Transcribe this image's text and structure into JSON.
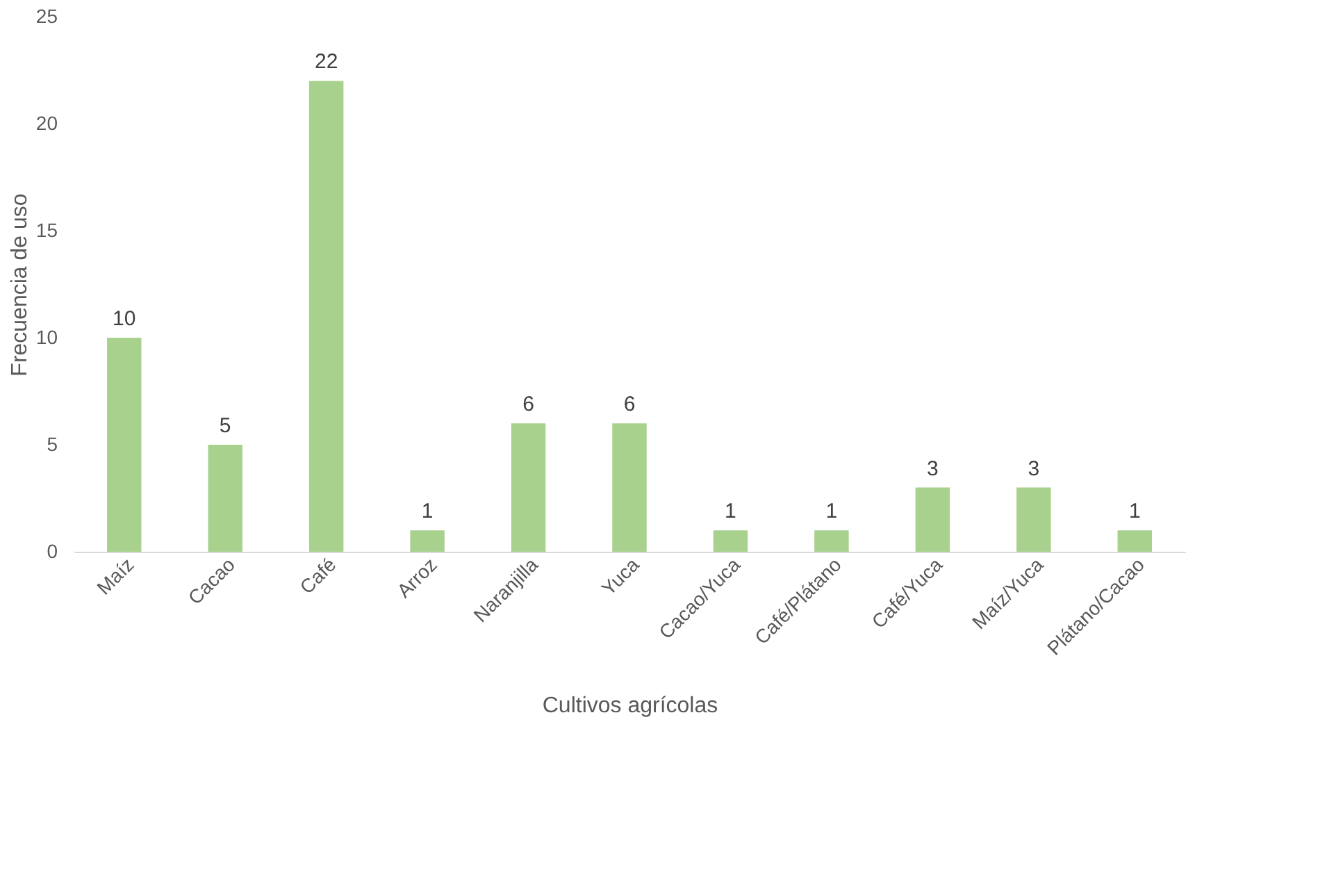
{
  "chart_data": {
    "type": "bar",
    "categories": [
      "Maíz",
      "Cacao",
      "Café",
      "Arroz",
      "Naranjilla",
      "Yuca",
      "Cacao/Yuca",
      "Café/Plátano",
      "Café/Yuca",
      "Maíz/Yuca",
      "Plátano/Cacao"
    ],
    "values": [
      10,
      5,
      22,
      1,
      6,
      6,
      1,
      1,
      3,
      3,
      1
    ],
    "color": "#a9d18e",
    "xlabel": "Cultivos agrícolas",
    "ylabel": "Frecuencia de uso",
    "ylim": [
      0,
      25
    ],
    "yticks": [
      0,
      5,
      10,
      15,
      20,
      25
    ],
    "grid": false,
    "data_labels": true
  }
}
